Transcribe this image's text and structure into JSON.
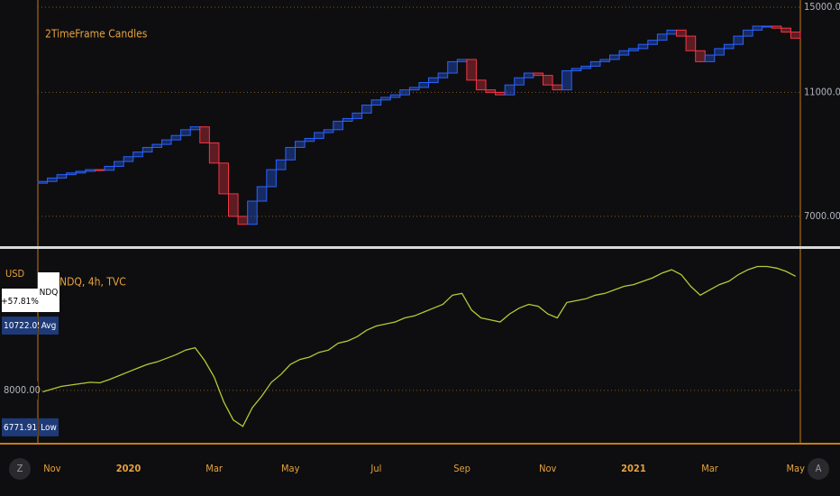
{
  "chart_data": [
    {
      "type": "box_candles",
      "title": "2TimeFrame Candles",
      "categories": [
        null,
        "Nov",
        null,
        null,
        null,
        null,
        null,
        null,
        null,
        "2020",
        null,
        null,
        null,
        null,
        null,
        null,
        null,
        null,
        "Mar",
        null,
        null,
        null,
        null,
        null,
        null,
        null,
        "May",
        null,
        null,
        null,
        null,
        null,
        null,
        null,
        null,
        "Jul",
        null,
        null,
        null,
        null,
        null,
        null,
        null,
        null,
        "Sep",
        null,
        null,
        null,
        null,
        null,
        null,
        null,
        null,
        "Nov",
        null,
        null,
        null,
        null,
        null,
        null,
        null,
        null,
        "2021",
        null,
        null,
        null,
        null,
        null,
        null,
        null,
        "Mar",
        null,
        null,
        null,
        null,
        null,
        null,
        null,
        null,
        "May"
      ],
      "open": [
        7900,
        7950,
        8050,
        8150,
        8200,
        8250,
        8300,
        8280,
        8400,
        8550,
        8700,
        8850,
        9000,
        9100,
        9250,
        9400,
        9600,
        9700,
        9150,
        8500,
        7600,
        7000,
        6800,
        7400,
        7800,
        8300,
        8600,
        9000,
        9200,
        9300,
        9500,
        9600,
        9900,
        10000,
        10200,
        10500,
        10700,
        10800,
        10900,
        11100,
        11200,
        11400,
        11600,
        11800,
        12300,
        12400,
        11500,
        11100,
        11000,
        10900,
        11300,
        11600,
        11800,
        11700,
        11300,
        11100,
        11900,
        12000,
        12100,
        12300,
        12400,
        12600,
        12800,
        12900,
        13100,
        13300,
        13600,
        13800,
        13500,
        12800,
        12300,
        12600,
        12900,
        13100,
        13500,
        13800,
        14000,
        14000,
        13900,
        13700
      ],
      "close": [
        7950,
        8050,
        8150,
        8200,
        8250,
        8300,
        8280,
        8400,
        8550,
        8700,
        8850,
        9000,
        9100,
        9250,
        9400,
        9600,
        9700,
        9150,
        8500,
        7600,
        7000,
        6800,
        7400,
        7800,
        8300,
        8600,
        9000,
        9200,
        9300,
        9500,
        9600,
        9900,
        10000,
        10200,
        10500,
        10700,
        10800,
        10900,
        11100,
        11200,
        11400,
        11600,
        11800,
        12300,
        12400,
        11500,
        11100,
        11000,
        10900,
        11300,
        11600,
        11800,
        11700,
        11300,
        11100,
        11900,
        12000,
        12100,
        12300,
        12400,
        12600,
        12800,
        12900,
        13100,
        13300,
        13600,
        13800,
        13500,
        12800,
        12300,
        12600,
        12900,
        13100,
        13500,
        13800,
        14000,
        14000,
        13900,
        13700,
        13400
      ],
      "up_color": "#2962ff",
      "down_color": "#f23645",
      "log_scale": true,
      "ylim": [
        6300,
        15400
      ],
      "yticks": [
        {
          "value": 7000,
          "label": "7000.00"
        },
        {
          "value": 11000,
          "label": "11000.00"
        },
        {
          "value": 15000,
          "label": "15000.00"
        }
      ],
      "grid": true
    },
    {
      "type": "line",
      "title": "NDQ, 4h, TVC",
      "symbol": "NDQ",
      "currency": "USD",
      "categories": [
        null,
        "Nov",
        null,
        null,
        null,
        null,
        null,
        null,
        null,
        "2020",
        null,
        null,
        null,
        null,
        null,
        null,
        null,
        null,
        "Mar",
        null,
        null,
        null,
        null,
        null,
        null,
        null,
        "May",
        null,
        null,
        null,
        null,
        null,
        null,
        null,
        null,
        "Jul",
        null,
        null,
        null,
        null,
        null,
        null,
        null,
        null,
        "Sep",
        null,
        null,
        null,
        null,
        null,
        null,
        null,
        null,
        "Nov",
        null,
        null,
        null,
        null,
        null,
        null,
        null,
        null,
        "2021",
        null,
        null,
        null,
        null,
        null,
        null,
        null,
        "Mar",
        null,
        null,
        null,
        null,
        null,
        null,
        null,
        null,
        "May"
      ],
      "values": [
        7950,
        8050,
        8150,
        8200,
        8250,
        8300,
        8280,
        8400,
        8550,
        8700,
        8850,
        9000,
        9100,
        9250,
        9400,
        9600,
        9700,
        9150,
        8500,
        7600,
        7000,
        6800,
        7400,
        7800,
        8300,
        8600,
        9000,
        9200,
        9300,
        9500,
        9600,
        9900,
        10000,
        10200,
        10500,
        10700,
        10800,
        10900,
        11100,
        11200,
        11400,
        11600,
        11800,
        12300,
        12400,
        11500,
        11100,
        11000,
        10900,
        11300,
        11600,
        11800,
        11700,
        11300,
        11100,
        11900,
        12000,
        12100,
        12300,
        12400,
        12600,
        12800,
        12900,
        13100,
        13300,
        13600,
        13800,
        13500,
        12800,
        12300,
        12600,
        12900,
        13100,
        13500,
        13800,
        14000,
        14000,
        13900,
        13700,
        13400
      ],
      "color": "#b5c936",
      "log_scale": true,
      "ylim": [
        6340,
        14320
      ],
      "yticks": [
        {
          "value": 8000,
          "label": "8000.00"
        }
      ],
      "grid": true,
      "change": {
        "value": 57.81,
        "label": "+57.81%"
      },
      "markers": [
        {
          "name": "Avg",
          "value": 10722.05
        },
        {
          "name": "Low",
          "value": 6771.91
        }
      ]
    }
  ],
  "buttons": [
    "Z",
    "A"
  ]
}
